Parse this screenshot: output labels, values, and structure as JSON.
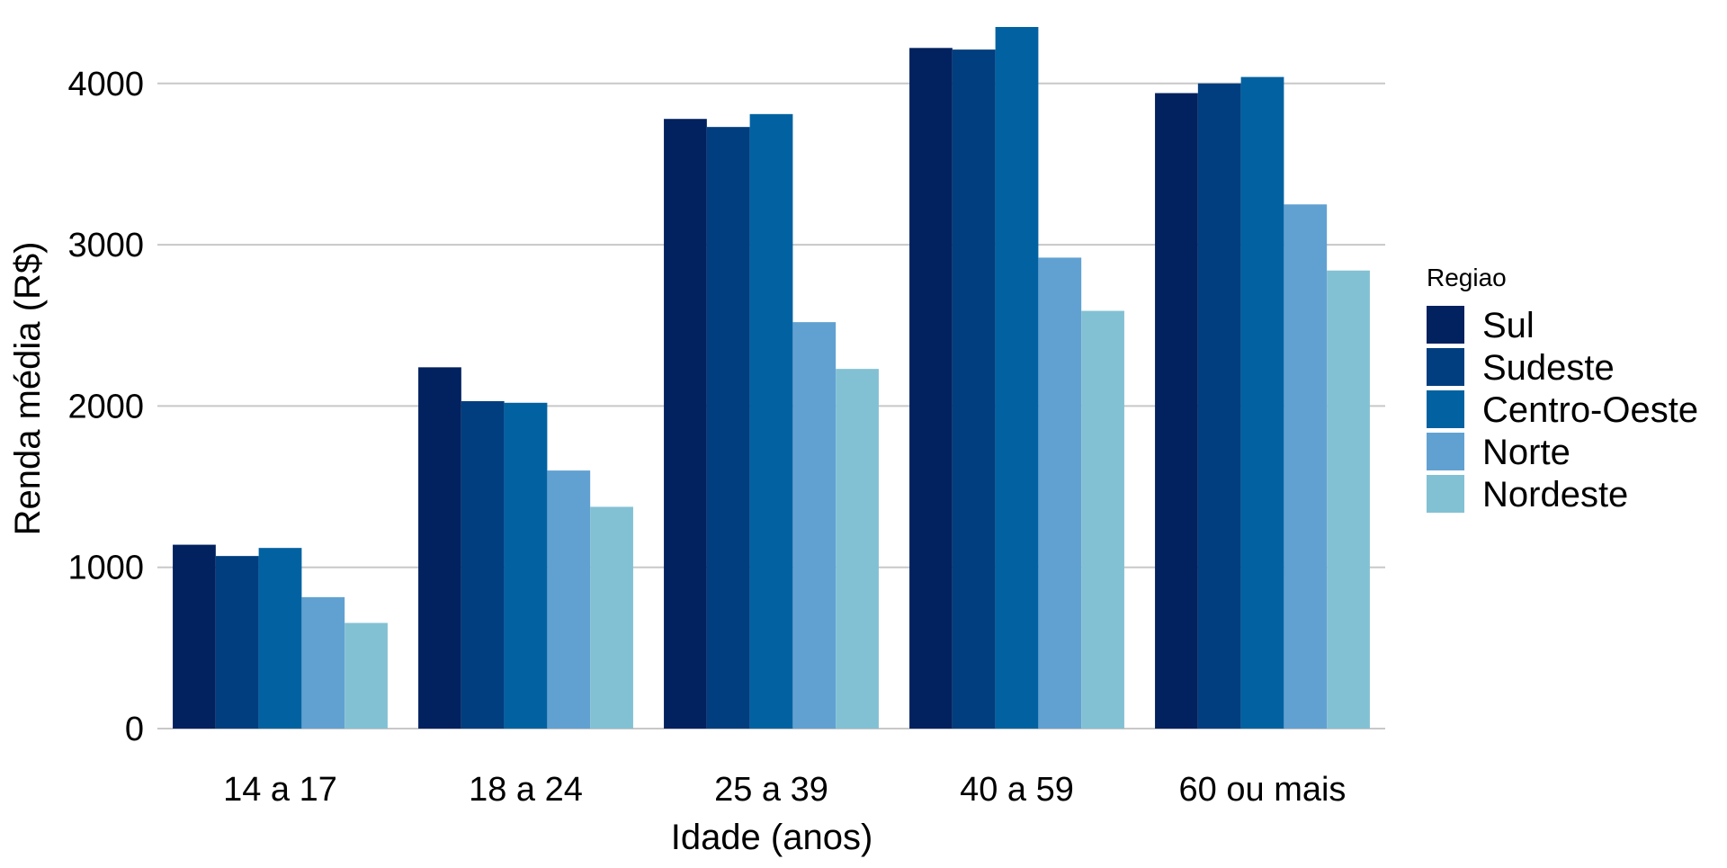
{
  "chart_data": {
    "type": "bar",
    "xlabel": "Idade (anos)",
    "ylabel": "Renda média (R$)",
    "categories": [
      "14 a 17",
      "18 a 24",
      "25 a 39",
      "40 a 59",
      "60 ou mais"
    ],
    "ylim": [
      0,
      4350
    ],
    "yticks": [
      0,
      1000,
      2000,
      3000,
      4000
    ],
    "grid": "horizontal",
    "legend": {
      "title": "Regiao",
      "placement": "right"
    },
    "series": [
      {
        "name": "Sul",
        "color": "#02215f",
        "values": [
          1140,
          2240,
          3780,
          4220,
          3940
        ]
      },
      {
        "name": "Sudeste",
        "color": "#003e7f",
        "values": [
          1070,
          2030,
          3730,
          4210,
          4000
        ]
      },
      {
        "name": "Centro-Oeste",
        "color": "#0262a1",
        "values": [
          1120,
          2020,
          3810,
          4350,
          4040
        ]
      },
      {
        "name": "Norte",
        "color": "#61a1d2",
        "values": [
          815,
          1600,
          2520,
          2920,
          3250
        ]
      },
      {
        "name": "Nordeste",
        "color": "#82c1d3",
        "values": [
          655,
          1375,
          2230,
          2590,
          2840
        ]
      }
    ]
  }
}
